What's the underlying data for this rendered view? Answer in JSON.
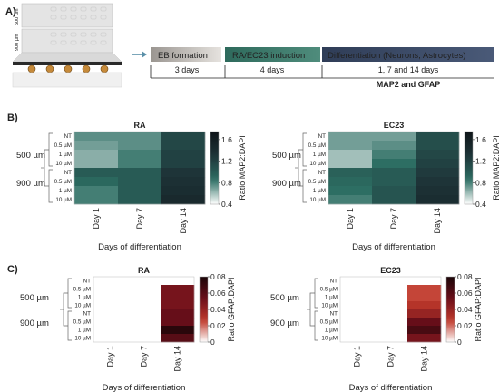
{
  "panel_a": {
    "label": "A)",
    "chip_labels": [
      "500 µm",
      "900 µm"
    ],
    "stages": [
      {
        "label": "EB formation",
        "duration": "3 days",
        "color": "#c9c4bd"
      },
      {
        "label": "RA/EC23 induction",
        "duration": "4 days",
        "color": "#3d7a6a"
      },
      {
        "label": "Differentiation (Neurons, Astrocytes)",
        "duration": "1, 7 and 14 days",
        "color": "#3b4a63"
      }
    ],
    "markers": "MAP2 and GFAP"
  },
  "chart_data": [
    {
      "type": "heatmap",
      "panel": "B)",
      "title": "RA",
      "columns": [
        "Day 1",
        "Day 7",
        "Day 14"
      ],
      "rows": [
        "NT",
        "0.5 µM",
        "1 µM",
        "10 µM",
        "NT",
        "0.5 µM",
        "1 µM",
        "10 µM"
      ],
      "row_groups": [
        "500 µm",
        "900 µm"
      ],
      "values": [
        [
          0.75,
          0.75,
          1.15
        ],
        [
          0.7,
          0.75,
          1.15
        ],
        [
          0.65,
          0.8,
          1.2
        ],
        [
          0.65,
          0.8,
          1.2
        ],
        [
          1.0,
          1.0,
          1.3
        ],
        [
          0.9,
          1.0,
          1.35
        ],
        [
          0.8,
          1.0,
          1.4
        ],
        [
          0.8,
          1.0,
          1.45
        ]
      ],
      "xlabel": "Days of differentiation",
      "colorbar_label": "Ratio MAP2:DAPI",
      "colorbar_ticks": [
        "1.6",
        "1.2",
        "0.8",
        "0.4"
      ],
      "vmin": 0.4,
      "vmax": 1.75,
      "cmap": [
        "#ffffff",
        "#2d6e63",
        "#1e3438",
        "#0e1418"
      ]
    },
    {
      "type": "heatmap",
      "panel": "",
      "title": "EC23",
      "columns": [
        "Day 1",
        "Day 7",
        "Day 14"
      ],
      "rows": [
        "NT",
        "0.5 µM",
        "1 µM",
        "10 µM",
        "NT",
        "0.5 µM",
        "1 µM",
        "10 µM"
      ],
      "row_groups": [
        "500 µm",
        "900 µm"
      ],
      "values": [
        [
          0.7,
          0.7,
          1.1
        ],
        [
          0.7,
          0.75,
          1.1
        ],
        [
          0.6,
          0.8,
          1.15
        ],
        [
          0.6,
          0.85,
          1.2
        ],
        [
          0.95,
          1.0,
          1.25
        ],
        [
          0.9,
          1.0,
          1.3
        ],
        [
          0.85,
          1.05,
          1.35
        ],
        [
          0.8,
          1.05,
          1.4
        ]
      ],
      "xlabel": "Days of differentiation",
      "colorbar_label": "Ratio MAP2:DAPI",
      "colorbar_ticks": [
        "1.6",
        "1.2",
        "0.8",
        "0.4"
      ],
      "vmin": 0.4,
      "vmax": 1.75,
      "cmap": [
        "#ffffff",
        "#2d6e63",
        "#1e3438",
        "#0e1418"
      ]
    },
    {
      "type": "heatmap",
      "panel": "C)",
      "title": "RA",
      "columns": [
        "Day 1",
        "Day 7",
        "Day 14"
      ],
      "rows": [
        "NT",
        "0.5 µM",
        "1 µM",
        "10 µM",
        "NT",
        "0.5 µM",
        "1 µM",
        "10 µM"
      ],
      "row_groups": [
        "500 µm",
        "900 µm"
      ],
      "values": [
        [
          0,
          0,
          0
        ],
        [
          0,
          0,
          0.05
        ],
        [
          0,
          0,
          0.05
        ],
        [
          0,
          0,
          0.05
        ],
        [
          0,
          0,
          0.055
        ],
        [
          0,
          0,
          0.055
        ],
        [
          0,
          0,
          0.075
        ],
        [
          0,
          0,
          0.06
        ]
      ],
      "xlabel": "Days of differentiation",
      "colorbar_label": "Ratio GFAP:DAPI",
      "colorbar_ticks": [
        "0.08",
        "0.06",
        "0.04",
        "0.02",
        "0"
      ],
      "vmin": 0,
      "vmax": 0.08,
      "cmap": [
        "#ffffff",
        "#c0392b",
        "#6b0f1a",
        "#1a0508"
      ]
    },
    {
      "type": "heatmap",
      "panel": "",
      "title": "EC23",
      "columns": [
        "Day 1",
        "Day 7",
        "Day 14"
      ],
      "rows": [
        "NT",
        "0.5 µM",
        "1 µM",
        "10 µM",
        "NT",
        "0.5 µM",
        "1 µM",
        "10 µM"
      ],
      "row_groups": [
        "500 µm",
        "900 µm"
      ],
      "values": [
        [
          0,
          0,
          0
        ],
        [
          0,
          0,
          0.025
        ],
        [
          0,
          0,
          0.025
        ],
        [
          0,
          0,
          0.03
        ],
        [
          0,
          0,
          0.04
        ],
        [
          0,
          0,
          0.055
        ],
        [
          0,
          0,
          0.065
        ],
        [
          0,
          0,
          0.05
        ]
      ],
      "xlabel": "Days of differentiation",
      "colorbar_label": "Ratio GFAP:DAPI",
      "colorbar_ticks": [
        "0.08",
        "0.06",
        "0.04",
        "0.02",
        "0"
      ],
      "vmin": 0,
      "vmax": 0.08,
      "cmap": [
        "#ffffff",
        "#c0392b",
        "#6b0f1a",
        "#1a0508"
      ]
    }
  ]
}
